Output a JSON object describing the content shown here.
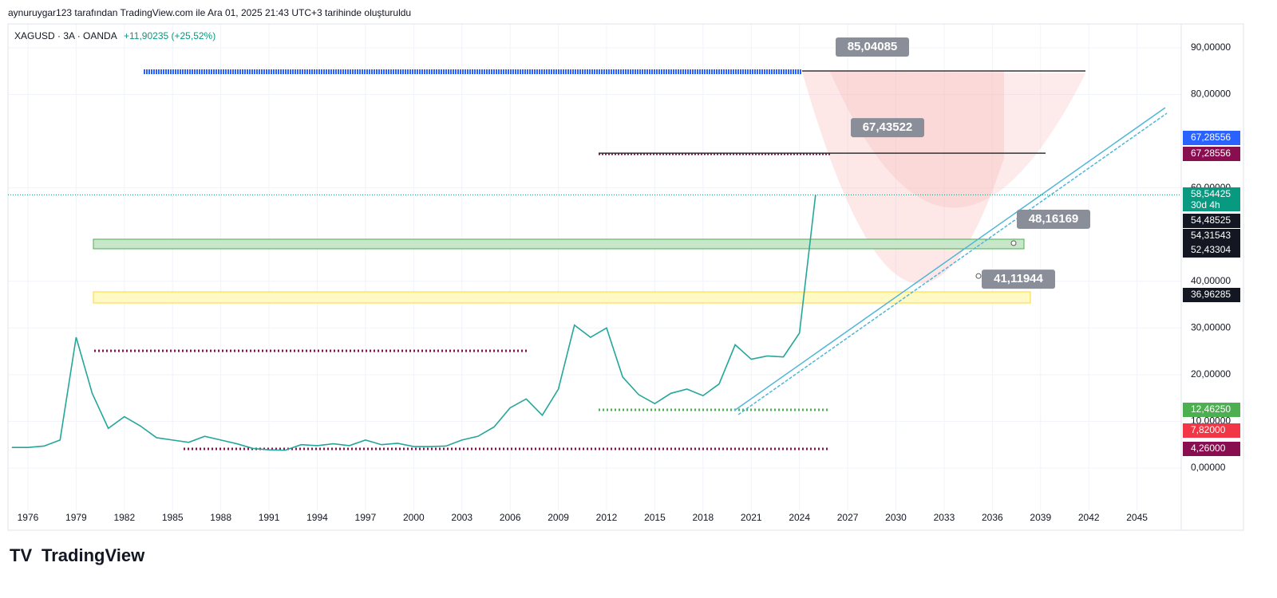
{
  "header": {
    "credit": "aynuruygar123 tarafından TradingView.com ile Ara 01, 2025 21:43 UTC+3 tarihinde oluşturuldu",
    "symbol": "XAGUSD · 3A · OANDA",
    "change": "+11,90235 (+25,52%)"
  },
  "footer": {
    "logo": "TradingView"
  },
  "chart_data": {
    "type": "line",
    "color": "#26a69a",
    "x": [
      1975,
      1976,
      1977,
      1978,
      1979,
      1980,
      1981,
      1982,
      1983,
      1984,
      1985,
      1986,
      1987,
      1988,
      1989,
      1990,
      1991,
      1992,
      1993,
      1994,
      1995,
      1996,
      1997,
      1998,
      1999,
      2000,
      2001,
      2002,
      2003,
      2004,
      2005,
      2006,
      2007,
      2008,
      2009,
      2010,
      2011,
      2012,
      2013,
      2014,
      2015,
      2016,
      2017,
      2018,
      2019,
      2020,
      2021,
      2022,
      2023,
      2024,
      2025
    ],
    "values": [
      4.4,
      4.4,
      4.7,
      6,
      28,
      16,
      8.5,
      11,
      9,
      6.5,
      6,
      5.5,
      6.8,
      6,
      5.2,
      4.2,
      3.9,
      3.8,
      5,
      4.8,
      5.2,
      4.8,
      6,
      5,
      5.3,
      4.6,
      4.6,
      4.7,
      6,
      6.8,
      8.8,
      12.9,
      14.8,
      11.3,
      16.9,
      30.6,
      28,
      30,
      19.5,
      15.7,
      13.8,
      16,
      16.9,
      15.5,
      18,
      26.4,
      23.3,
      24,
      23.8,
      28.9,
      58.5
    ],
    "xlim": [
      1974.76,
      2047.75
    ],
    "ylim": [
      -9.05,
      93.4
    ],
    "xticks": [
      1976,
      1979,
      1982,
      1985,
      1988,
      1991,
      1994,
      1997,
      2000,
      2003,
      2006,
      2009,
      2012,
      2015,
      2018,
      2021,
      2024,
      2027,
      2030,
      2033,
      2036,
      2039,
      2042,
      2045
    ],
    "yticks": [
      {
        "value": 0,
        "label": "0,00000"
      },
      {
        "value": 10,
        "label": "10,00000"
      },
      {
        "value": 20,
        "label": "20,00000"
      },
      {
        "value": 30,
        "label": "30,00000"
      },
      {
        "value": 40,
        "label": "40,00000"
      },
      {
        "value": 60,
        "label": "60,00000"
      },
      {
        "value": 80,
        "label": "80,00000"
      },
      {
        "value": 90,
        "label": "90,00000"
      }
    ],
    "grid": true,
    "annotations": [
      {
        "value": 85.04085,
        "label": "85,04085"
      },
      {
        "value": 67.43522,
        "label": "67,43522"
      },
      {
        "value": 48.16169,
        "label": "48,16169"
      },
      {
        "value": 41.11944,
        "label": "41,11944"
      }
    ],
    "price_tags": [
      {
        "value": 67.28556,
        "label": "67,28556",
        "color": "#2962ff"
      },
      {
        "value": 67.28556,
        "label": "67,28556",
        "color": "#880e4f"
      },
      {
        "value": 58.54425,
        "label": "58,54425",
        "color": "#089981"
      },
      {
        "value": 54.48525,
        "label": "54,48525",
        "color": "#131722"
      },
      {
        "value": 54.31543,
        "label": "54,31543",
        "color": "#131722"
      },
      {
        "value": 52.43304,
        "label": "52,43304",
        "color": "#131722"
      },
      {
        "value": 36.96285,
        "label": "36,96285",
        "color": "#131722"
      },
      {
        "value": 12.4625,
        "label": "12,46250",
        "color": "#4caf50"
      },
      {
        "value": 7.82,
        "label": "7,82000",
        "color": "#f23645"
      },
      {
        "value": 4.26,
        "label": "4,26000",
        "color": "#880e4f"
      }
    ],
    "countdown": "30d 4h"
  }
}
